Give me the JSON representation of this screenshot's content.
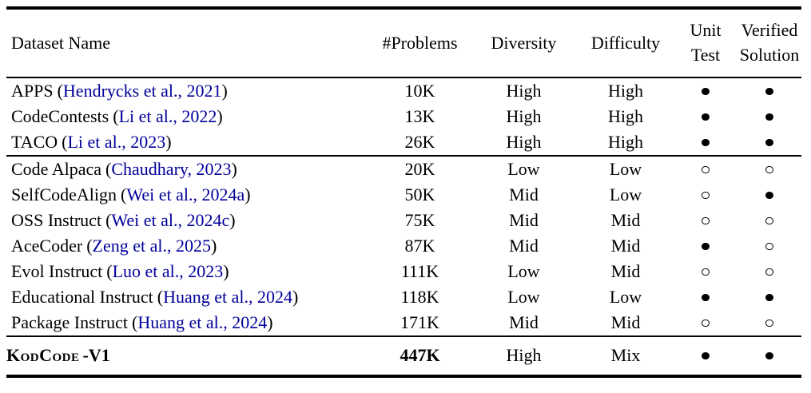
{
  "colors": {
    "background": "#FFFFFF",
    "text": "#000000",
    "citation_link": "#00009B",
    "rule": "#000000"
  },
  "table": {
    "headers": {
      "dataset_name": "Dataset Name",
      "problems": "#Problems",
      "diversity": "Diversity",
      "difficulty": "Difficulty",
      "unit_test": [
        "Unit",
        "Test"
      ],
      "verified_solution": [
        "Verified",
        "Solution"
      ]
    },
    "punctuation": {
      "open_paren": "(",
      "close_paren": ")"
    },
    "rows": [
      {
        "name": "APPS",
        "citation": "Hendrycks et al., 2021",
        "problems": "10K",
        "diversity": "High",
        "difficulty": "High",
        "unit_test": "filled",
        "verified_solution": "filled"
      },
      {
        "name": "CodeContests",
        "citation": "Li et al., 2022",
        "problems": "13K",
        "diversity": "High",
        "difficulty": "High",
        "unit_test": "filled",
        "verified_solution": "filled"
      },
      {
        "name": "TACO",
        "citation": "Li et al., 2023",
        "problems": "26K",
        "diversity": "High",
        "difficulty": "High",
        "unit_test": "filled",
        "verified_solution": "filled"
      },
      {
        "name": "Code Alpaca",
        "citation": "Chaudhary, 2023",
        "problems": "20K",
        "diversity": "Low",
        "difficulty": "Low",
        "unit_test": "open",
        "verified_solution": "open"
      },
      {
        "name": "SelfCodeAlign",
        "citation": "Wei et al., 2024a",
        "problems": "50K",
        "diversity": "Mid",
        "difficulty": "Low",
        "unit_test": "open",
        "verified_solution": "filled"
      },
      {
        "name": "OSS Instruct",
        "citation": "Wei et al., 2024c",
        "problems": "75K",
        "diversity": "Mid",
        "difficulty": "Mid",
        "unit_test": "open",
        "verified_solution": "open"
      },
      {
        "name": "AceCoder",
        "citation": "Zeng et al., 2025",
        "problems": "87K",
        "diversity": "Mid",
        "difficulty": "Mid",
        "unit_test": "filled",
        "verified_solution": "open"
      },
      {
        "name": "Evol Instruct",
        "citation": "Luo et al., 2023",
        "problems": "111K",
        "diversity": "Low",
        "difficulty": "Mid",
        "unit_test": "open",
        "verified_solution": "open"
      },
      {
        "name": "Educational Instruct",
        "citation": "Huang et al., 2024",
        "problems": "118K",
        "diversity": "Low",
        "difficulty": "Low",
        "unit_test": "filled",
        "verified_solution": "filled"
      },
      {
        "name": "Package Instruct",
        "citation": "Huang et al., 2024",
        "problems": "171K",
        "diversity": "Mid",
        "difficulty": "Mid",
        "unit_test": "open",
        "verified_solution": "open"
      }
    ],
    "footer_row": {
      "name": "KodCode",
      "suffix": "-V1",
      "problems": "447K",
      "diversity": "High",
      "difficulty": "Mix",
      "unit_test": "filled",
      "verified_solution": "filled"
    }
  }
}
